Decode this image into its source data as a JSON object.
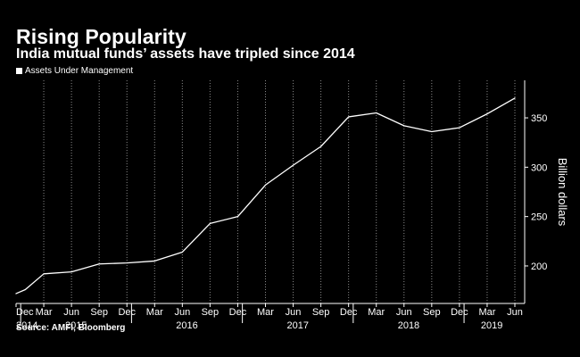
{
  "header": {
    "title": "Rising Popularity",
    "subtitle": "India mutual funds’ assets have tripled since 2014"
  },
  "legend": {
    "label": "Assets Under Management",
    "color": "#ffffff"
  },
  "footer": {
    "source": "Source: AMFI, Bloomberg"
  },
  "chart_data": {
    "type": "line",
    "title": "Rising Popularity",
    "subtitle": "India mutual funds’ assets have tripled since 2014",
    "ylabel": "Billion dollars",
    "xlabel": "",
    "ylim": [
      162,
      388
    ],
    "yticks": [
      200,
      250,
      300,
      350
    ],
    "grid": "vertical dotted at quarterly ticks",
    "legend_position": "top-left",
    "x": [
      "Dec 2014",
      "Jan 2015",
      "Mar 2015",
      "Jun 2015",
      "Sep 2015",
      "Dec 2015",
      "Mar 2016",
      "Jun 2016",
      "Sep 2016",
      "Dec 2016",
      "Mar 2017",
      "Jun 2017",
      "Sep 2017",
      "Dec 2017",
      "Mar 2018",
      "Jun 2018",
      "Sep 2018",
      "Dec 2018",
      "Mar 2019",
      "Jun 2019"
    ],
    "series": [
      {
        "name": "Assets Under Management",
        "color": "#ffffff",
        "values": [
          172,
          176,
          192,
          194,
          202,
          203,
          205,
          214,
          243,
          250,
          282,
          302,
          321,
          351,
          355,
          342,
          336,
          340,
          354,
          370
        ]
      }
    ],
    "x_tick_labels": [
      "Dec",
      "Mar",
      "Jun",
      "Sep",
      "Dec",
      "Mar",
      "Jun",
      "Sep",
      "Dec",
      "Mar",
      "Jun",
      "Sep",
      "Dec",
      "Mar",
      "Jun",
      "Sep",
      "Dec",
      "Mar",
      "Jun"
    ],
    "year_labels": [
      "2014",
      "2015",
      "2016",
      "2017",
      "2018",
      "2019"
    ]
  }
}
